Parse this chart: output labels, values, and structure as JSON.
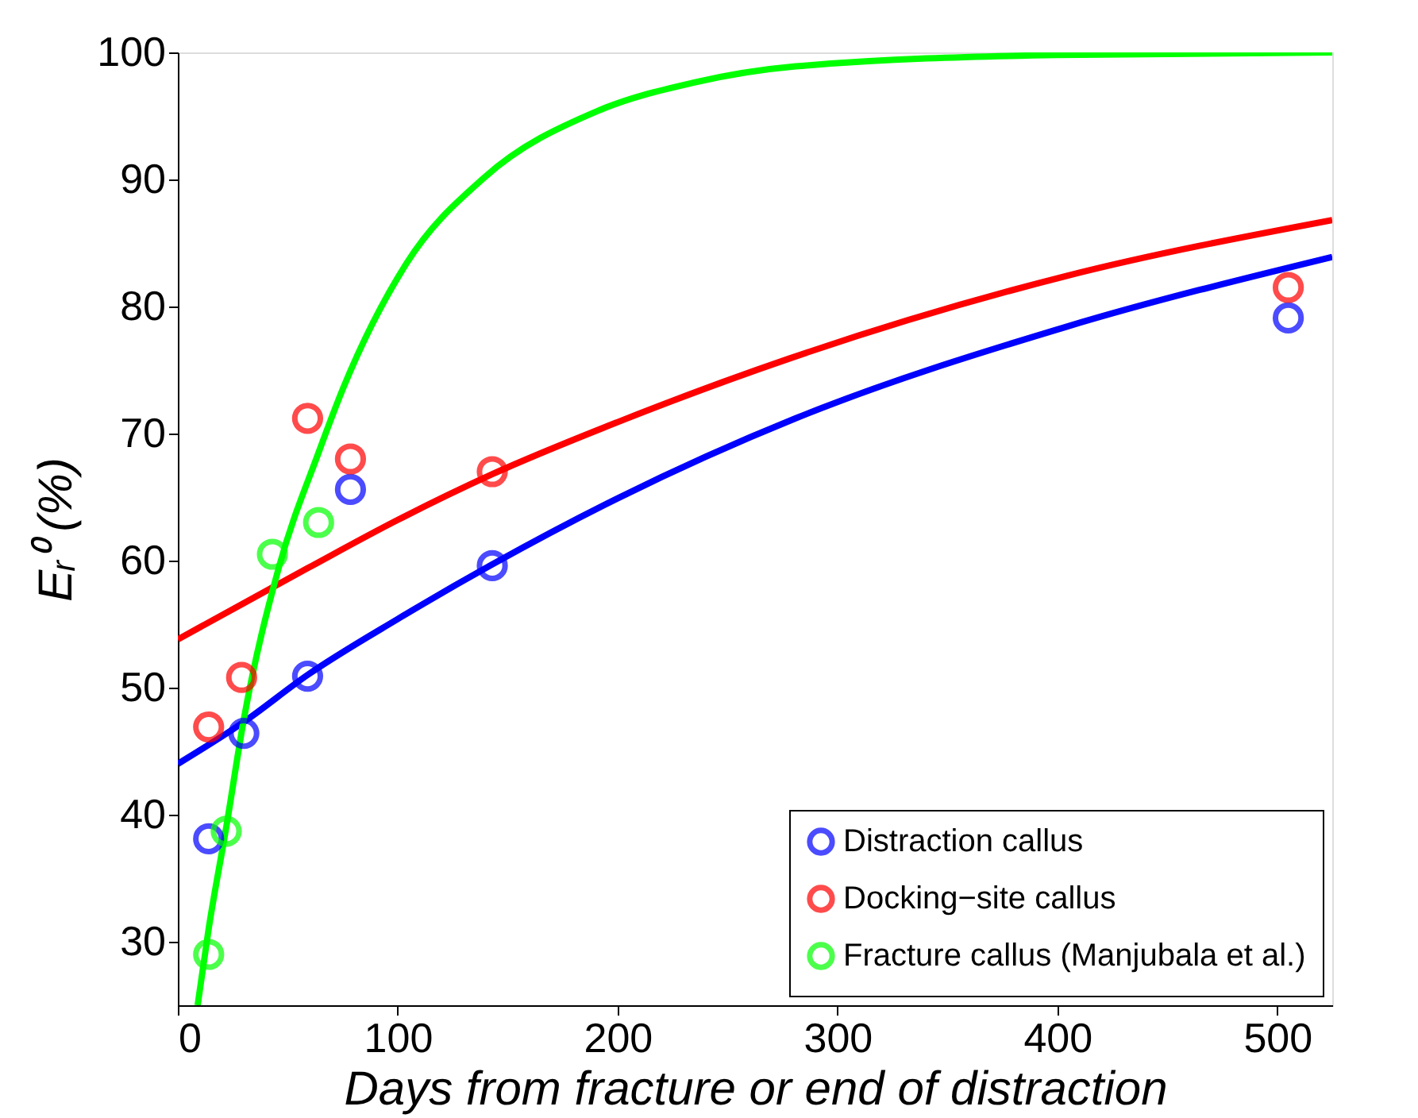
{
  "chart_data": {
    "type": "scatter",
    "xlabel": "Days from fracture or end of distraction",
    "ylabel": "Eᵣ⁰ (%)",
    "xlim": [
      0,
      525
    ],
    "ylim": [
      25,
      100
    ],
    "xticks": [
      0,
      100,
      200,
      300,
      400,
      500
    ],
    "yticks": [
      30,
      40,
      50,
      60,
      70,
      80,
      90,
      100
    ],
    "legend": "bottom right",
    "series": [
      {
        "name": "Distraction callus",
        "color": "#0000ff",
        "marker": "circle",
        "x": [
          14,
          30,
          59,
          78.5,
          143,
          505
        ],
        "values": [
          38.1,
          46.4,
          50.9,
          65.6,
          59.6,
          79.1
        ]
      },
      {
        "name": "Docking−site callus",
        "color": "#ff0000",
        "marker": "circle",
        "x": [
          14,
          29,
          59,
          78.5,
          143,
          505
        ],
        "values": [
          46.9,
          50.8,
          71.2,
          68.0,
          67.0,
          81.5
        ]
      },
      {
        "name": "Fracture callus (Manjubala et al.)",
        "color": "#00ff00",
        "marker": "circle",
        "x": [
          14,
          22,
          43,
          64
        ],
        "values": [
          29.0,
          38.7,
          60.5,
          63.0
        ]
      },
      {
        "type": "line",
        "color": "#0000ff",
        "marker": "none",
        "x": [
          0,
          30,
          59,
          100,
          143,
          200,
          281,
          404,
          525
        ],
        "values": [
          44,
          47.3,
          51,
          55.4,
          59.7,
          64.9,
          71.2,
          78.4,
          83.9
        ]
      },
      {
        "type": "line",
        "color": "#ff0000",
        "marker": "none",
        "x": [
          0,
          59,
          100,
          143,
          200,
          278,
          404,
          525
        ],
        "values": [
          53.8,
          59.4,
          63.2,
          66.8,
          70.9,
          75.9,
          82.4,
          86.8
        ]
      },
      {
        "type": "line",
        "color": "#00ff00",
        "marker": "none",
        "x": [
          9,
          14,
          22,
          30,
          46,
          64,
          75,
          104,
          139,
          191,
          234,
          281,
          400,
          525
        ],
        "values": [
          25,
          31,
          39,
          47.5,
          59.5,
          68.5,
          73.5,
          83.4,
          90.1,
          95.4,
          97.6,
          98.9,
          99.8,
          100
        ]
      }
    ]
  }
}
